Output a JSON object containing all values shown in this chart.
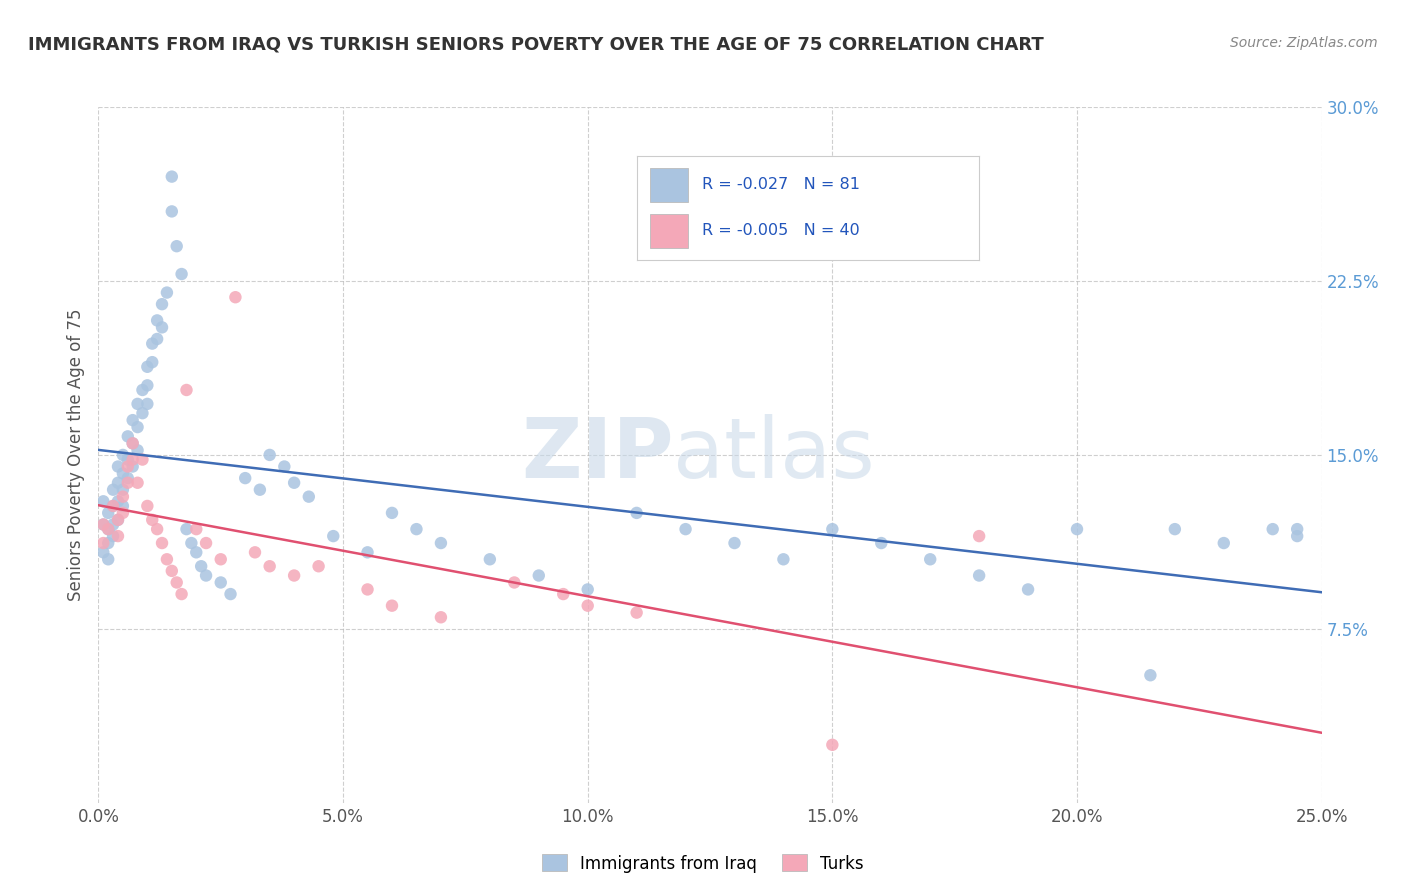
{
  "title": "IMMIGRANTS FROM IRAQ VS TURKISH SENIORS POVERTY OVER THE AGE OF 75 CORRELATION CHART",
  "source": "Source: ZipAtlas.com",
  "ylabel": "Seniors Poverty Over the Age of 75",
  "xlim": [
    0.0,
    0.25
  ],
  "ylim": [
    0.0,
    0.3
  ],
  "xtick_labels": [
    "0.0%",
    "5.0%",
    "10.0%",
    "15.0%",
    "20.0%",
    "25.0%"
  ],
  "xtick_vals": [
    0.0,
    0.05,
    0.1,
    0.15,
    0.2,
    0.25
  ],
  "ytick_labels": [
    "7.5%",
    "15.0%",
    "22.5%",
    "30.0%"
  ],
  "ytick_vals": [
    0.075,
    0.15,
    0.225,
    0.3
  ],
  "legend_labels": [
    "Immigrants from Iraq",
    "Turks"
  ],
  "series": [
    {
      "name": "Immigrants from Iraq",
      "R": -0.027,
      "N": 81,
      "color": "#aac4e0",
      "line_color": "#3f6cb5",
      "x": [
        0.001,
        0.001,
        0.001,
        0.002,
        0.002,
        0.002,
        0.002,
        0.003,
        0.003,
        0.003,
        0.003,
        0.004,
        0.004,
        0.004,
        0.004,
        0.005,
        0.005,
        0.005,
        0.005,
        0.006,
        0.006,
        0.006,
        0.007,
        0.007,
        0.007,
        0.008,
        0.008,
        0.008,
        0.009,
        0.009,
        0.01,
        0.01,
        0.01,
        0.011,
        0.011,
        0.012,
        0.012,
        0.013,
        0.013,
        0.014,
        0.015,
        0.015,
        0.016,
        0.017,
        0.018,
        0.019,
        0.02,
        0.021,
        0.022,
        0.025,
        0.027,
        0.03,
        0.033,
        0.035,
        0.038,
        0.04,
        0.043,
        0.048,
        0.055,
        0.06,
        0.065,
        0.07,
        0.08,
        0.09,
        0.1,
        0.11,
        0.12,
        0.13,
        0.14,
        0.15,
        0.16,
        0.17,
        0.18,
        0.19,
        0.2,
        0.215,
        0.22,
        0.23,
        0.24,
        0.245,
        0.245
      ],
      "y": [
        0.13,
        0.12,
        0.108,
        0.125,
        0.118,
        0.112,
        0.105,
        0.135,
        0.128,
        0.12,
        0.115,
        0.145,
        0.138,
        0.13,
        0.122,
        0.15,
        0.142,
        0.135,
        0.128,
        0.158,
        0.148,
        0.14,
        0.165,
        0.155,
        0.145,
        0.172,
        0.162,
        0.152,
        0.178,
        0.168,
        0.188,
        0.18,
        0.172,
        0.198,
        0.19,
        0.208,
        0.2,
        0.215,
        0.205,
        0.22,
        0.27,
        0.255,
        0.24,
        0.228,
        0.118,
        0.112,
        0.108,
        0.102,
        0.098,
        0.095,
        0.09,
        0.14,
        0.135,
        0.15,
        0.145,
        0.138,
        0.132,
        0.115,
        0.108,
        0.125,
        0.118,
        0.112,
        0.105,
        0.098,
        0.092,
        0.125,
        0.118,
        0.112,
        0.105,
        0.118,
        0.112,
        0.105,
        0.098,
        0.092,
        0.118,
        0.055,
        0.118,
        0.112,
        0.118,
        0.115,
        0.118
      ]
    },
    {
      "name": "Turks",
      "R": -0.005,
      "N": 40,
      "color": "#f4a8b8",
      "line_color": "#e05070",
      "x": [
        0.001,
        0.001,
        0.002,
        0.003,
        0.004,
        0.004,
        0.005,
        0.005,
        0.006,
        0.006,
        0.007,
        0.007,
        0.008,
        0.009,
        0.01,
        0.011,
        0.012,
        0.013,
        0.014,
        0.015,
        0.016,
        0.017,
        0.018,
        0.02,
        0.022,
        0.025,
        0.028,
        0.032,
        0.035,
        0.04,
        0.045,
        0.055,
        0.06,
        0.07,
        0.085,
        0.095,
        0.1,
        0.11,
        0.15,
        0.18
      ],
      "y": [
        0.12,
        0.112,
        0.118,
        0.128,
        0.122,
        0.115,
        0.132,
        0.125,
        0.145,
        0.138,
        0.155,
        0.148,
        0.138,
        0.148,
        0.128,
        0.122,
        0.118,
        0.112,
        0.105,
        0.1,
        0.095,
        0.09,
        0.178,
        0.118,
        0.112,
        0.105,
        0.218,
        0.108,
        0.102,
        0.098,
        0.102,
        0.092,
        0.085,
        0.08,
        0.095,
        0.09,
        0.085,
        0.082,
        0.025,
        0.115
      ]
    }
  ],
  "watermark_zip": "ZIP",
  "watermark_atlas": "atlas",
  "background_color": "#ffffff",
  "grid_color": "#bbbbbb",
  "title_color": "#333333",
  "right_tick_color": "#5b9bd5"
}
